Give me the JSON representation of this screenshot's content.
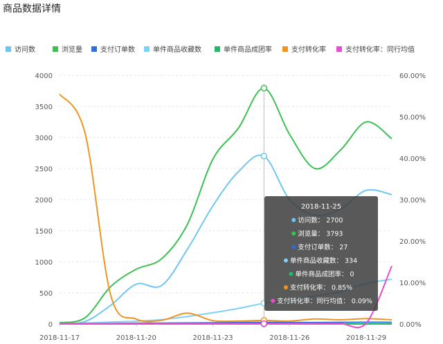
{
  "page": {
    "title": "商品数据详情"
  },
  "chart_data": {
    "type": "line",
    "x": [
      "2018-11-17",
      "2018-11-18",
      "2018-11-19",
      "2018-11-20",
      "2018-11-21",
      "2018-11-22",
      "2018-11-23",
      "2018-11-24",
      "2018-11-25",
      "2018-11-26",
      "2018-11-27",
      "2018-11-28",
      "2018-11-29",
      "2018-11-30"
    ],
    "x_tick_labels": [
      "2018-11-17",
      "2018-11-20",
      "2018-11-23",
      "2018-11-26",
      "2018-11-29"
    ],
    "y_left": {
      "ticks": [
        "0",
        "500",
        "1000",
        "1500",
        "2000",
        "2500",
        "3000",
        "3500",
        "4000"
      ],
      "range": [
        0,
        4000
      ]
    },
    "y_right": {
      "ticks": [
        "0.00%",
        "10.00%",
        "20.00%",
        "30.00%",
        "40.00%",
        "50.00%",
        "60.00%"
      ],
      "range": [
        0,
        60
      ]
    },
    "series": [
      {
        "name": "访问数",
        "color": "#6ec6f0",
        "axis": "left",
        "values": [
          10,
          40,
          300,
          640,
          620,
          1200,
          1900,
          2450,
          2700,
          2000,
          1750,
          1850,
          2150,
          2080
        ]
      },
      {
        "name": "浏览量",
        "color": "#3cbf53",
        "axis": "left",
        "values": [
          20,
          100,
          600,
          880,
          1050,
          1600,
          2650,
          3150,
          3793,
          3050,
          2500,
          2800,
          3250,
          2980
        ]
      },
      {
        "name": "支付订单数",
        "color": "#2f6fd6",
        "axis": "left",
        "values": [
          3,
          5,
          8,
          12,
          14,
          16,
          20,
          24,
          27,
          25,
          24,
          26,
          28,
          27
        ]
      },
      {
        "name": "单件商品收藏数",
        "color": "#7fd0f5",
        "axis": "left",
        "values": [
          5,
          15,
          30,
          45,
          70,
          120,
          180,
          250,
          334,
          390,
          450,
          520,
          650,
          720
        ]
      },
      {
        "name": "单件商品成团率",
        "color": "#22b86a",
        "axis": "right",
        "values": [
          0,
          0,
          0,
          0,
          0,
          0,
          0,
          0,
          0,
          0,
          0,
          0,
          0,
          0
        ]
      },
      {
        "name": "支付转化率",
        "color": "#f0941f",
        "axis": "right",
        "values": [
          55.5,
          46,
          7,
          1.2,
          0.9,
          2.6,
          0.8,
          0.7,
          0.85,
          0.7,
          1.2,
          1.0,
          1.3,
          1.0
        ]
      },
      {
        "name": "支付转化率：同行均值",
        "color": "#e84cd0",
        "axis": "right",
        "values": [
          0.1,
          0.1,
          0.1,
          0.1,
          0.1,
          0.1,
          0.1,
          0.1,
          0.09,
          0.1,
          0.1,
          0.1,
          0.2,
          14
        ]
      }
    ],
    "tooltip": {
      "date": "2018-11-25",
      "rows": [
        {
          "label": "访问数：",
          "value": "2700",
          "color": "#6ec6f0"
        },
        {
          "label": "浏览量：",
          "value": "3793",
          "color": "#3cbf53"
        },
        {
          "label": "支付订单数：",
          "value": "27",
          "color": "#2f6fd6"
        },
        {
          "label": "单件商品收藏数：",
          "value": "334",
          "color": "#7fd0f5"
        },
        {
          "label": "单件商品成团率：",
          "value": "0",
          "color": "#22b86a"
        },
        {
          "label": "支付转化率：",
          "value": "0.85%",
          "color": "#f0941f"
        },
        {
          "label": "支付转化率：同行均值：",
          "value": "0.09%",
          "color": "#e84cd0"
        }
      ]
    },
    "grid": true,
    "legend_position": "top-left"
  }
}
